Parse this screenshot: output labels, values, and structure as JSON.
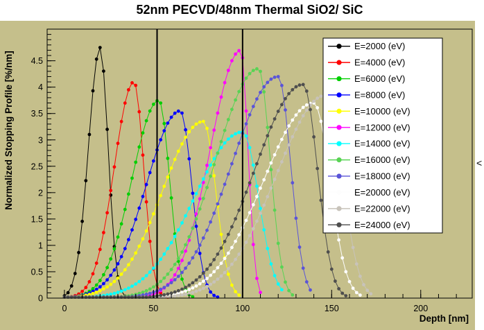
{
  "page": {
    "right_edge_glyph": "<"
  },
  "chart_data": {
    "type": "line",
    "title": "52nm PECVD/48nm Thermal SiO2/ SiC",
    "xlabel": "Depth [nm]",
    "ylabel": "Normalized Stopping Profile [%/nm]",
    "xlim": [
      -9.7,
      228.9
    ],
    "ylim": [
      0,
      5.1
    ],
    "x_major_ticks": [
      0,
      50,
      100,
      150,
      200
    ],
    "x_tick_labels": [
      "0",
      "50",
      "100",
      "150",
      "200"
    ],
    "x_minor_step": 10,
    "y_major_ticks": [
      0,
      0.5,
      1,
      1.5,
      2,
      2.5,
      3,
      3.5,
      4,
      4.5
    ],
    "y_tick_labels": [
      "0",
      "0.5",
      "1",
      "1.5",
      "2",
      "2.5",
      "3",
      "3.5",
      "4",
      "4.5"
    ],
    "y_minor_step": 0.1,
    "grid": false,
    "plot_background": "#c5bf8b",
    "boundary_lines_x": [
      52,
      100
    ],
    "legend_position": "top-right",
    "marker_style": "filled-circle",
    "series": [
      {
        "label": "E=2000 (eV)",
        "color": "#000000",
        "peak_x": 20,
        "peak_y": 4.75,
        "sigma_left": 6.5,
        "sigma_right": 4.5,
        "x_start": 0,
        "x_end": 40
      },
      {
        "label": "E=4000 (eV)",
        "color": "#ff0000",
        "peak_x": 39,
        "peak_y": 4.1,
        "sigma_left": 11,
        "sigma_right": 5.5,
        "x_start": 0,
        "x_end": 58
      },
      {
        "label": "E=6000 (eV)",
        "color": "#00cf00",
        "peak_x": 53,
        "peak_y": 3.75,
        "sigma_left": 15,
        "sigma_right": 6,
        "x_start": 0,
        "x_end": 72
      },
      {
        "label": "E=8000 (eV)",
        "color": "#0000ff",
        "peak_x": 65,
        "peak_y": 3.55,
        "sigma_left": 19,
        "sigma_right": 6.5,
        "x_start": 0,
        "x_end": 86
      },
      {
        "label": "E=10000 (eV)",
        "color": "#ffff00",
        "peak_x": 78,
        "peak_y": 3.35,
        "sigma_left": 23,
        "sigma_right": 7,
        "x_start": 0,
        "x_end": 98
      },
      {
        "label": "E=12000 (eV)",
        "color": "#ff00ff",
        "peak_x": 99,
        "peak_y": 4.7,
        "sigma_left": 17,
        "sigma_right": 4,
        "x_start": 0,
        "x_end": 110
      },
      {
        "label": "E=14000 (eV)",
        "color": "#00ffff",
        "peak_x": 100,
        "peak_y": 3.15,
        "sigma_left": 27,
        "sigma_right": 9,
        "x_start": 0,
        "x_end": 122
      },
      {
        "label": "E=16000 (eV)",
        "color": "#59d354",
        "peak_x": 109,
        "peak_y": 4.35,
        "sigma_left": 24,
        "sigma_right": 6.5,
        "x_start": 0,
        "x_end": 128
      },
      {
        "label": "E=18000 (eV)",
        "color": "#5a54d8",
        "peak_x": 120,
        "peak_y": 4.2,
        "sigma_left": 26,
        "sigma_right": 7,
        "x_start": 0,
        "x_end": 138
      },
      {
        "label": "E=20000 (eV)",
        "color": "#fdfdfd",
        "peak_x": 140,
        "peak_y": 3.7,
        "sigma_left": 28,
        "sigma_right": 9,
        "x_start": 0,
        "x_end": 166
      },
      {
        "label": "E=22000 (eV)",
        "color": "#c8c3ba",
        "peak_x": 147,
        "peak_y": 3.85,
        "sigma_left": 28,
        "sigma_right": 9,
        "x_start": 0,
        "x_end": 172
      },
      {
        "label": "E=24000 (eV)",
        "color": "#4e4e4e",
        "peak_x": 134,
        "peak_y": 4.05,
        "sigma_left": 27,
        "sigma_right": 8,
        "x_start": 0,
        "x_end": 158
      }
    ]
  }
}
